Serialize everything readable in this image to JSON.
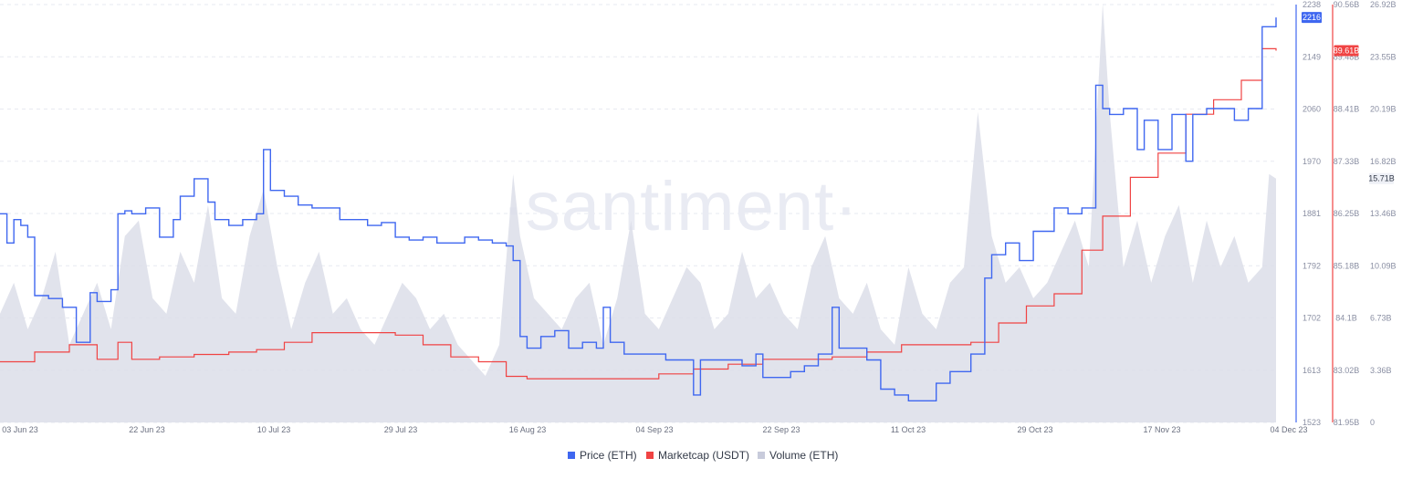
{
  "watermark": "·santiment·",
  "colors": {
    "price": "#3f67f0",
    "marketcap": "#f04343",
    "volume": "#dcdee9",
    "grid": "#e7e9f0"
  },
  "legend": [
    {
      "label": "Price (ETH)",
      "color": "#3f67f0"
    },
    {
      "label": "Marketcap (USDT)",
      "color": "#f04343"
    },
    {
      "label": "Volume (ETH)",
      "color": "#c8cbdb"
    }
  ],
  "chart_data": {
    "type": "line",
    "x_ticks": [
      "03 Jun 23",
      "22 Jun 23",
      "10 Jul 23",
      "29 Jul 23",
      "16 Aug 23",
      "04 Sep 23",
      "22 Sep 23",
      "11 Oct 23",
      "29 Oct 23",
      "17 Nov 23",
      "04 Dec 23"
    ],
    "x_range": [
      "2023-06-03",
      "2023-12-04"
    ],
    "axes": {
      "price": {
        "ticks": [
          "2238",
          "2149",
          "2060",
          "1970",
          "1881",
          "1792",
          "1702",
          "1613",
          "1523"
        ],
        "range": [
          1523,
          2238
        ],
        "current_label": "2216"
      },
      "marketcap": {
        "ticks": [
          "90.56B",
          "89.48B",
          "88.41B",
          "87.33B",
          "86.25B",
          "85.18B",
          "84.1B",
          "83.02B",
          "81.95B"
        ],
        "range": [
          81.95,
          90.56
        ],
        "current_label": "89.61B"
      },
      "volume": {
        "ticks": [
          "26.92B",
          "23.55B",
          "20.19B",
          "16.82B",
          "13.46B",
          "10.09B",
          "6.73B",
          "3.36B",
          "0"
        ],
        "range": [
          0,
          26.92
        ],
        "current_label": "15.71B"
      }
    },
    "series": [
      {
        "name": "Price (ETH)",
        "axis": "price",
        "x": [
          "2023-06-03",
          "2023-06-04",
          "2023-06-05",
          "2023-06-06",
          "2023-06-07",
          "2023-06-08",
          "2023-06-10",
          "2023-06-12",
          "2023-06-14",
          "2023-06-16",
          "2023-06-17",
          "2023-06-19",
          "2023-06-20",
          "2023-06-21",
          "2023-06-22",
          "2023-06-24",
          "2023-06-26",
          "2023-06-28",
          "2023-06-29",
          "2023-07-01",
          "2023-07-03",
          "2023-07-04",
          "2023-07-06",
          "2023-07-08",
          "2023-07-10",
          "2023-07-11",
          "2023-07-12",
          "2023-07-14",
          "2023-07-16",
          "2023-07-18",
          "2023-07-20",
          "2023-07-22",
          "2023-07-24",
          "2023-07-26",
          "2023-07-28",
          "2023-07-30",
          "2023-08-01",
          "2023-08-03",
          "2023-08-05",
          "2023-08-07",
          "2023-08-09",
          "2023-08-11",
          "2023-08-13",
          "2023-08-15",
          "2023-08-16",
          "2023-08-17",
          "2023-08-18",
          "2023-08-20",
          "2023-08-22",
          "2023-08-24",
          "2023-08-26",
          "2023-08-28",
          "2023-08-29",
          "2023-08-30",
          "2023-09-01",
          "2023-09-03",
          "2023-09-05",
          "2023-09-07",
          "2023-09-09",
          "2023-09-11",
          "2023-09-12",
          "2023-09-14",
          "2023-09-16",
          "2023-09-18",
          "2023-09-20",
          "2023-09-21",
          "2023-09-23",
          "2023-09-25",
          "2023-09-27",
          "2023-09-29",
          "2023-10-01",
          "2023-10-02",
          "2023-10-04",
          "2023-10-06",
          "2023-10-08",
          "2023-10-10",
          "2023-10-12",
          "2023-10-14",
          "2023-10-16",
          "2023-10-18",
          "2023-10-20",
          "2023-10-21",
          "2023-10-23",
          "2023-10-24",
          "2023-10-26",
          "2023-10-28",
          "2023-10-30",
          "2023-11-01",
          "2023-11-02",
          "2023-11-04",
          "2023-11-06",
          "2023-11-08",
          "2023-11-09",
          "2023-11-10",
          "2023-11-12",
          "2023-11-14",
          "2023-11-15",
          "2023-11-17",
          "2023-11-19",
          "2023-11-21",
          "2023-11-22",
          "2023-11-24",
          "2023-11-26",
          "2023-11-28",
          "2023-11-30",
          "2023-12-02",
          "2023-12-04"
        ],
        "values": [
          1880,
          1830,
          1870,
          1860,
          1840,
          1740,
          1735,
          1720,
          1660,
          1745,
          1730,
          1750,
          1880,
          1885,
          1880,
          1890,
          1840,
          1870,
          1910,
          1940,
          1900,
          1870,
          1860,
          1870,
          1880,
          1990,
          1920,
          1910,
          1895,
          1890,
          1890,
          1870,
          1870,
          1860,
          1865,
          1840,
          1835,
          1840,
          1830,
          1830,
          1840,
          1835,
          1830,
          1825,
          1800,
          1670,
          1650,
          1670,
          1680,
          1650,
          1660,
          1650,
          1720,
          1660,
          1640,
          1640,
          1640,
          1630,
          1630,
          1570,
          1630,
          1630,
          1630,
          1620,
          1640,
          1600,
          1600,
          1610,
          1620,
          1640,
          1720,
          1650,
          1650,
          1630,
          1580,
          1570,
          1560,
          1560,
          1590,
          1610,
          1610,
          1640,
          1770,
          1810,
          1830,
          1800,
          1850,
          1850,
          1890,
          1880,
          1890,
          2100,
          2060,
          2050,
          2060,
          1990,
          2040,
          1990,
          2050,
          1970,
          2050,
          2060,
          2060,
          2040,
          2060,
          2200,
          2216
        ]
      },
      {
        "name": "Marketcap (USDT)",
        "axis": "marketcap",
        "x": [
          "2023-06-03",
          "2023-06-08",
          "2023-06-13",
          "2023-06-17",
          "2023-06-20",
          "2023-06-22",
          "2023-06-26",
          "2023-07-01",
          "2023-07-06",
          "2023-07-10",
          "2023-07-14",
          "2023-07-18",
          "2023-07-22",
          "2023-07-26",
          "2023-07-30",
          "2023-08-03",
          "2023-08-07",
          "2023-08-11",
          "2023-08-15",
          "2023-08-18",
          "2023-08-20",
          "2023-08-25",
          "2023-09-01",
          "2023-09-06",
          "2023-09-11",
          "2023-09-16",
          "2023-09-21",
          "2023-09-26",
          "2023-10-01",
          "2023-10-06",
          "2023-10-11",
          "2023-10-16",
          "2023-10-21",
          "2023-10-25",
          "2023-10-29",
          "2023-11-02",
          "2023-11-06",
          "2023-11-09",
          "2023-11-13",
          "2023-11-17",
          "2023-11-21",
          "2023-11-25",
          "2023-11-29",
          "2023-12-02",
          "2023-12-04"
        ],
        "values": [
          83.2,
          83.4,
          83.55,
          83.25,
          83.6,
          83.25,
          83.3,
          83.35,
          83.4,
          83.45,
          83.6,
          83.8,
          83.8,
          83.8,
          83.75,
          83.55,
          83.3,
          83.2,
          82.9,
          82.85,
          82.85,
          82.85,
          82.85,
          82.95,
          83.05,
          83.15,
          83.25,
          83.25,
          83.3,
          83.4,
          83.55,
          83.55,
          83.6,
          84.0,
          84.35,
          84.6,
          85.5,
          86.2,
          87.0,
          87.5,
          88.3,
          88.6,
          89.0,
          89.65,
          89.61
        ]
      },
      {
        "name": "Volume (ETH)",
        "axis": "volume",
        "x": [
          "2023-06-03",
          "2023-06-05",
          "2023-06-07",
          "2023-06-09",
          "2023-06-11",
          "2023-06-13",
          "2023-06-15",
          "2023-06-17",
          "2023-06-19",
          "2023-06-21",
          "2023-06-23",
          "2023-06-25",
          "2023-06-27",
          "2023-06-29",
          "2023-07-01",
          "2023-07-03",
          "2023-07-05",
          "2023-07-07",
          "2023-07-09",
          "2023-07-11",
          "2023-07-13",
          "2023-07-15",
          "2023-07-17",
          "2023-07-19",
          "2023-07-21",
          "2023-07-23",
          "2023-07-25",
          "2023-07-27",
          "2023-07-29",
          "2023-07-31",
          "2023-08-02",
          "2023-08-04",
          "2023-08-06",
          "2023-08-08",
          "2023-08-10",
          "2023-08-12",
          "2023-08-14",
          "2023-08-16",
          "2023-08-17",
          "2023-08-19",
          "2023-08-21",
          "2023-08-23",
          "2023-08-25",
          "2023-08-27",
          "2023-08-29",
          "2023-08-31",
          "2023-09-02",
          "2023-09-04",
          "2023-09-06",
          "2023-09-08",
          "2023-09-10",
          "2023-09-12",
          "2023-09-14",
          "2023-09-16",
          "2023-09-18",
          "2023-09-20",
          "2023-09-22",
          "2023-09-24",
          "2023-09-26",
          "2023-09-28",
          "2023-09-30",
          "2023-10-02",
          "2023-10-04",
          "2023-10-06",
          "2023-10-08",
          "2023-10-10",
          "2023-10-12",
          "2023-10-14",
          "2023-10-16",
          "2023-10-18",
          "2023-10-20",
          "2023-10-22",
          "2023-10-24",
          "2023-10-26",
          "2023-10-28",
          "2023-10-30",
          "2023-11-01",
          "2023-11-03",
          "2023-11-05",
          "2023-11-07",
          "2023-11-09",
          "2023-11-10",
          "2023-11-12",
          "2023-11-14",
          "2023-11-16",
          "2023-11-18",
          "2023-11-20",
          "2023-11-22",
          "2023-11-24",
          "2023-11-26",
          "2023-11-28",
          "2023-11-30",
          "2023-12-02",
          "2023-12-03",
          "2023-12-04"
        ],
        "values": [
          7,
          9,
          6,
          8,
          11,
          5,
          7,
          9,
          6,
          12,
          13,
          8,
          7,
          11,
          9,
          14,
          8,
          7,
          12,
          15,
          10,
          6,
          9,
          11,
          7,
          8,
          6,
          5,
          7,
          9,
          8,
          6,
          7,
          5,
          4,
          3,
          5,
          16,
          12,
          8,
          7,
          6,
          8,
          9,
          5,
          8,
          13,
          7,
          6,
          8,
          10,
          9,
          6,
          7,
          11,
          8,
          9,
          7,
          6,
          10,
          12,
          8,
          7,
          9,
          6,
          5,
          10,
          7,
          6,
          9,
          10,
          20,
          12,
          9,
          10,
          8,
          9,
          11,
          13,
          10,
          27,
          20,
          10,
          13,
          9,
          12,
          14,
          9,
          13,
          10,
          12,
          9,
          10,
          16,
          15.71
        ]
      }
    ]
  }
}
